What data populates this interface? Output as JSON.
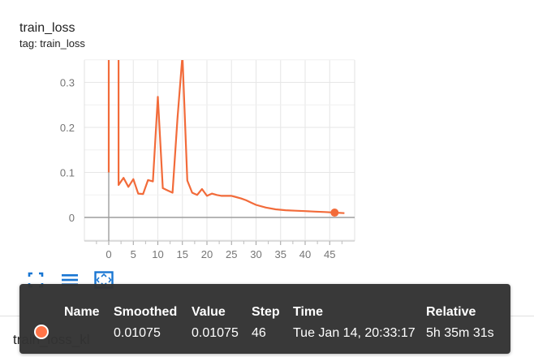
{
  "card": {
    "title": "train_loss",
    "tag": "tag: train_loss"
  },
  "chart_data": {
    "type": "line",
    "title": "train_loss",
    "xlabel": "",
    "ylabel": "",
    "xlim": [
      -5,
      50
    ],
    "ylim": [
      -0.055,
      0.36
    ],
    "x_ticks": [
      0,
      5,
      10,
      15,
      20,
      25,
      30,
      35,
      40,
      45
    ],
    "y_ticks": [
      0,
      0.1,
      0.2,
      0.3
    ],
    "y_tick_labels": [
      "0",
      "0.1",
      "0.2",
      "0.3"
    ],
    "grid": true,
    "series": [
      {
        "name": "train_loss_kl",
        "color": "#f26b3a",
        "x": [
          0,
          0,
          2,
          2,
          2.5,
          3,
          4,
          5,
          6,
          7,
          8,
          9,
          10,
          11,
          12,
          13,
          14,
          15,
          16,
          17,
          18,
          19,
          20,
          21,
          22,
          23,
          24,
          25,
          26,
          27,
          28,
          29,
          30,
          32,
          34,
          36,
          38,
          40,
          42,
          44,
          46,
          48
        ],
        "y": [
          0.1,
          0.36,
          0.36,
          0.072,
          0.08,
          0.088,
          0.068,
          0.085,
          0.053,
          0.052,
          0.083,
          0.08,
          0.268,
          0.065,
          0.06,
          0.055,
          0.22,
          0.36,
          0.082,
          0.055,
          0.05,
          0.063,
          0.048,
          0.053,
          0.05,
          0.048,
          0.048,
          0.048,
          0.045,
          0.042,
          0.038,
          0.033,
          0.028,
          0.022,
          0.018,
          0.016,
          0.015,
          0.014,
          0.013,
          0.012,
          0.01075,
          0.0095
        ]
      }
    ],
    "highlight": {
      "step": 46,
      "value": 0.01075
    }
  },
  "toolbar": {
    "icons": [
      "fit-to-domain-icon",
      "toggle-log-scale-icon",
      "expand-chart-icon"
    ],
    "color": "#1976d2"
  },
  "tooltip": {
    "headers": {
      "name": "Name",
      "smoothed": "Smoothed",
      "value": "Value",
      "step": "Step",
      "time": "Time",
      "relative": "Relative"
    },
    "row": {
      "smoothed": "0.01075",
      "value": "0.01075",
      "step": "46",
      "time": "Tue Jan 14, 20:33:17",
      "relative": "5h 35m 31s"
    },
    "dot_color": "#ff7043"
  },
  "run_label": "train_loss_kl"
}
